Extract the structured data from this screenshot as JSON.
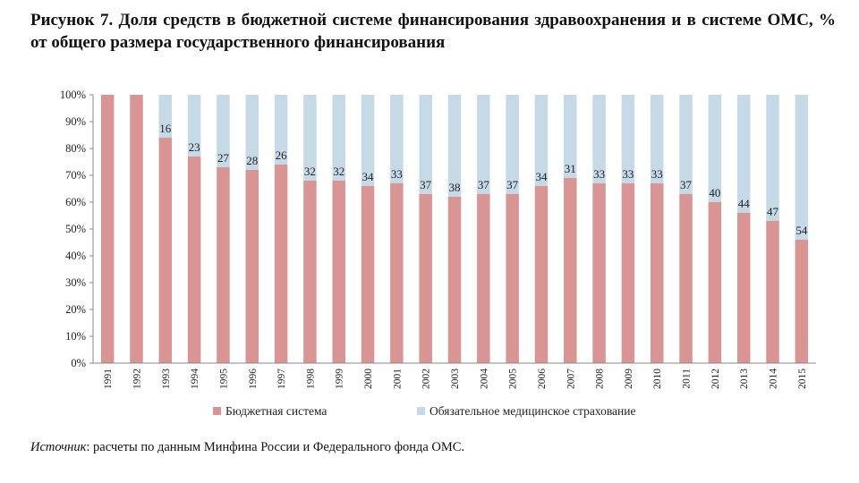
{
  "title": "Рисунок 7. Доля средств в бюджетной системе финансирования здравоохранения и в системе ОМС, % от общего размера государственного финансирования",
  "source": {
    "label": "Источник",
    "text": ": расчеты по данным Минфина России и Федерального фонда ОМС."
  },
  "chart_data": {
    "type": "bar",
    "stacked": true,
    "title": "Рисунок 7. Доля средств в бюджетной системе финансирования здравоохранения и в системе ОМС, % от общего размера государственного финансирования",
    "xlabel": "",
    "ylabel": "",
    "ylim": [
      0,
      100
    ],
    "yticks": [
      "0%",
      "10%",
      "20%",
      "30%",
      "40%",
      "50%",
      "60%",
      "70%",
      "80%",
      "90%",
      "100%"
    ],
    "categories": [
      "1991",
      "1992",
      "1993",
      "1994",
      "1995",
      "1996",
      "1997",
      "1998",
      "1999",
      "2000",
      "2001",
      "2002",
      "2003",
      "2004",
      "2005",
      "2006",
      "2007",
      "2008",
      "2009",
      "2010",
      "2011",
      "2012",
      "2013",
      "2014",
      "2015"
    ],
    "series": [
      {
        "name": "Бюджетная система",
        "color": "#d99594",
        "values": [
          100,
          100,
          84,
          77,
          73,
          72,
          74,
          68,
          68,
          66,
          67,
          63,
          62,
          63,
          63,
          66,
          69,
          67,
          67,
          67,
          63,
          60,
          56,
          53,
          46
        ]
      },
      {
        "name": "Обязательное медицинское страхование",
        "color": "#c6d9e6",
        "values": [
          0,
          0,
          16,
          23,
          27,
          28,
          26,
          32,
          32,
          34,
          33,
          37,
          38,
          37,
          37,
          34,
          31,
          33,
          33,
          33,
          37,
          40,
          44,
          47,
          54
        ]
      }
    ],
    "data_labels": [
      "",
      "",
      "16",
      "23",
      "27",
      "28",
      "26",
      "32",
      "32",
      "34",
      "33",
      "37",
      "38",
      "37",
      "37",
      "34",
      "31",
      "33",
      "33",
      "33",
      "37",
      "40",
      "44",
      "47",
      "54"
    ],
    "legend": "bottom"
  }
}
